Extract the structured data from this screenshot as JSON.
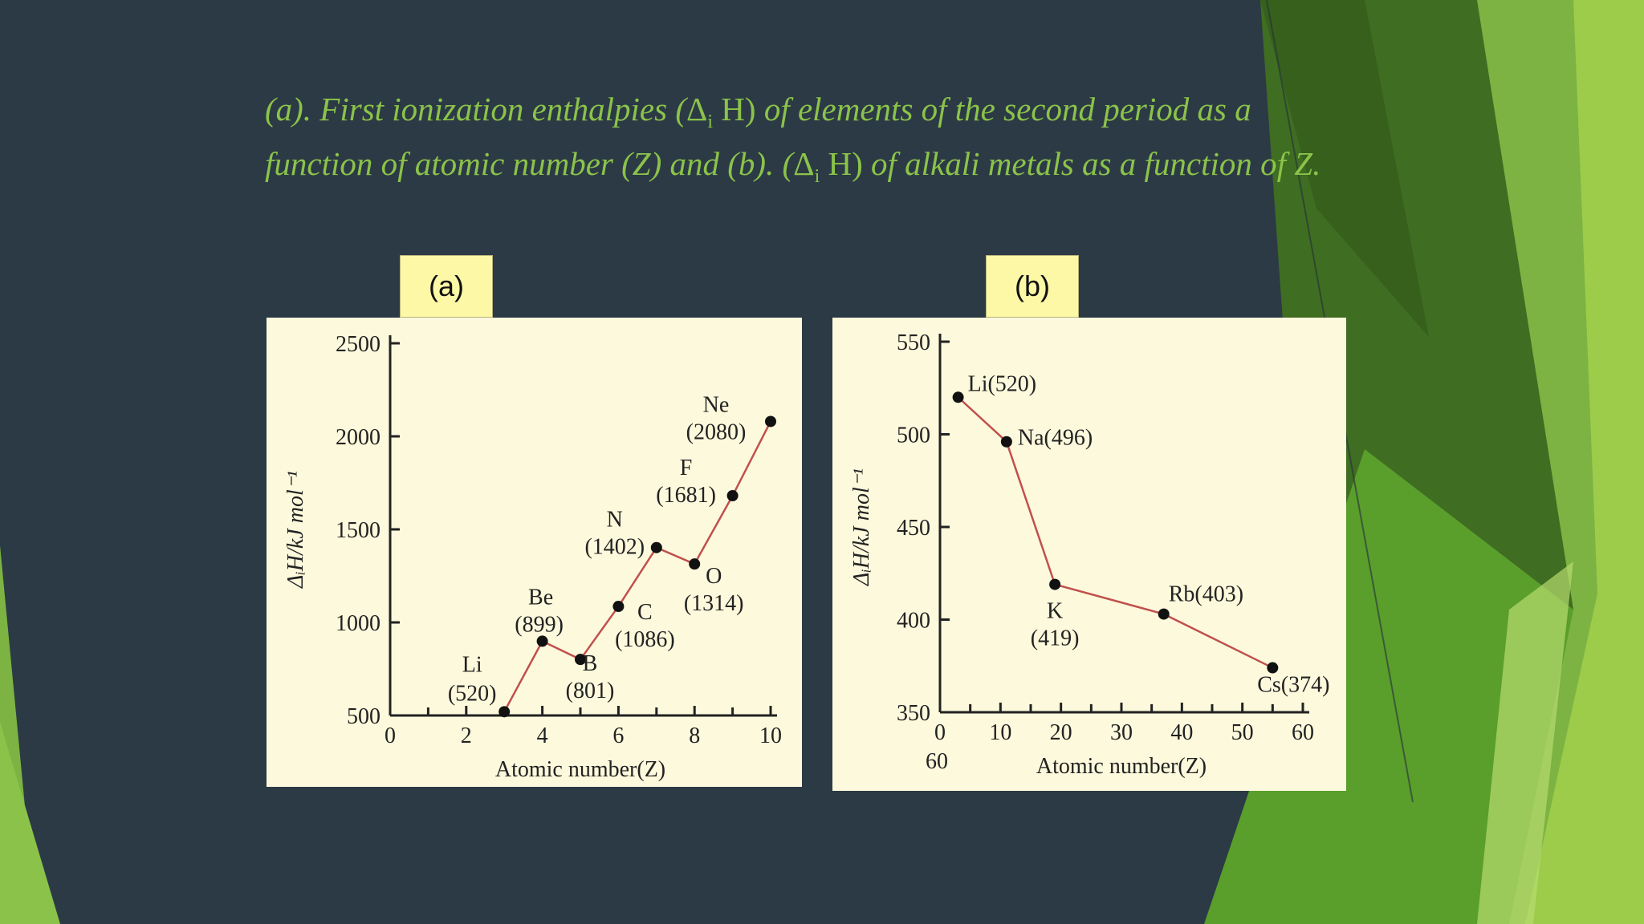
{
  "slide": {
    "title_part1": "(a). First ionization enthalpies (",
    "title_delta": "Δ",
    "title_sub": "i",
    "title_h": " H)",
    "title_part2": " of elements of the second period as a",
    "title_line2a": "function of atomic number (Z) and (b). (",
    "title_line2b": " of alkali metals as a function of Z."
  },
  "colors": {
    "background": "#2c3a45",
    "title": "#8bc34a",
    "panel": "#fdf9dc",
    "label_box": "#fdf8a6",
    "line": "#c0504d",
    "green_dark": "#4e8a1e",
    "green_light": "#8bc34a"
  },
  "chart_data": [
    {
      "type": "line",
      "panel_label": "(a)",
      "xlabel": "Atomic number(Z)",
      "ylabel": "ΔᵢH/kJ mol⁻¹",
      "xlim": [
        0,
        10
      ],
      "ylim": [
        500,
        2500
      ],
      "xticks": [
        "0",
        "2",
        "4",
        "6",
        "8",
        "10"
      ],
      "yticks": [
        "500",
        "1000",
        "1500",
        "2000",
        "2500"
      ],
      "points": [
        {
          "x": 3,
          "y": 520,
          "name": "Li",
          "value_label": "(520)"
        },
        {
          "x": 4,
          "y": 899,
          "name": "Be",
          "value_label": "(899)"
        },
        {
          "x": 5,
          "y": 801,
          "name": "B",
          "value_label": "(801)"
        },
        {
          "x": 6,
          "y": 1086,
          "name": "C",
          "value_label": "(1086)"
        },
        {
          "x": 7,
          "y": 1402,
          "name": "N",
          "value_label": "(1402)"
        },
        {
          "x": 8,
          "y": 1314,
          "name": "O",
          "value_label": "(1314)"
        },
        {
          "x": 9,
          "y": 1681,
          "name": "F",
          "value_label": "(1681)"
        },
        {
          "x": 10,
          "y": 2080,
          "name": "Ne",
          "value_label": "(2080)"
        }
      ]
    },
    {
      "type": "line",
      "panel_label": "(b)",
      "xlabel": "Atomic number(Z)",
      "ylabel": "ΔᵢH/kJ mol⁻¹",
      "xlim": [
        0,
        60
      ],
      "ylim": [
        350,
        550
      ],
      "xticks": [
        "0",
        "10",
        "20",
        "30",
        "40",
        "50",
        "60"
      ],
      "yticks": [
        "350",
        "400",
        "450",
        "500",
        "550"
      ],
      "extra_label": "60",
      "points": [
        {
          "x": 3,
          "y": 520,
          "name": "Li",
          "value_label": "(520)"
        },
        {
          "x": 11,
          "y": 496,
          "name": "Na",
          "value_label": "(496)"
        },
        {
          "x": 19,
          "y": 419,
          "name": "K",
          "value_label": "(419)"
        },
        {
          "x": 37,
          "y": 403,
          "name": "Rb",
          "value_label": "(403)"
        },
        {
          "x": 55,
          "y": 374,
          "name": "Cs",
          "value_label": "(374)"
        }
      ]
    }
  ]
}
